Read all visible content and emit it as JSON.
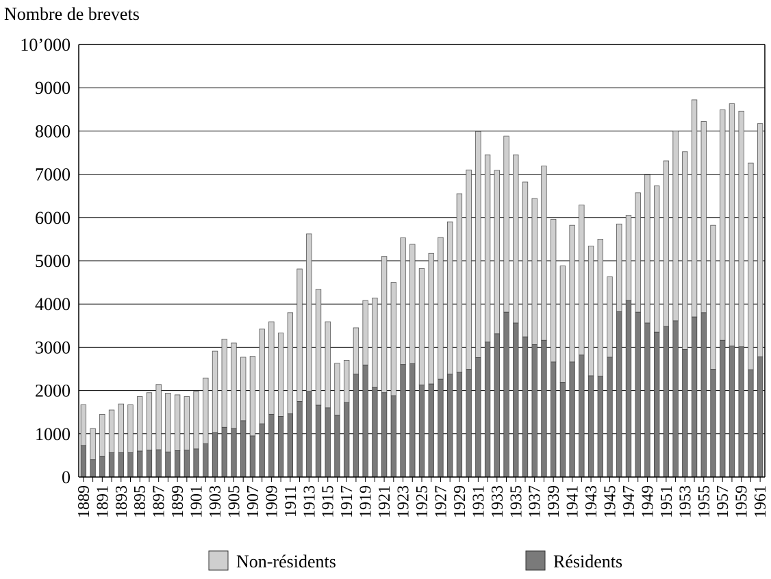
{
  "chart_data": {
    "type": "bar",
    "stacked": true,
    "title": "",
    "xlabel": "",
    "ylabel": "Nombre de brevets",
    "ylim": [
      0,
      10000
    ],
    "y_ticks": [
      "0",
      "1000",
      "2000",
      "3000",
      "4000",
      "5000",
      "6000",
      "7000",
      "8000",
      "9000",
      "10’000"
    ],
    "y_tick_values": [
      0,
      1000,
      2000,
      3000,
      4000,
      5000,
      6000,
      7000,
      8000,
      9000,
      10000
    ],
    "grid": "horizontal",
    "legend_position": "bottom",
    "categories": [
      1889,
      1890,
      1891,
      1892,
      1893,
      1894,
      1895,
      1896,
      1897,
      1898,
      1899,
      1900,
      1901,
      1902,
      1903,
      1904,
      1905,
      1906,
      1907,
      1908,
      1909,
      1910,
      1911,
      1912,
      1913,
      1914,
      1915,
      1916,
      1917,
      1918,
      1919,
      1920,
      1921,
      1922,
      1923,
      1924,
      1925,
      1926,
      1927,
      1928,
      1929,
      1930,
      1931,
      1932,
      1933,
      1934,
      1935,
      1936,
      1937,
      1938,
      1939,
      1940,
      1941,
      1942,
      1943,
      1944,
      1945,
      1946,
      1947,
      1948,
      1949,
      1950,
      1951,
      1952,
      1953,
      1954,
      1955,
      1956,
      1957,
      1958,
      1959,
      1960,
      1961
    ],
    "x_tick_labels": [
      "1889",
      "1891",
      "1893",
      "1895",
      "1897",
      "1899",
      "1901",
      "1903",
      "1905",
      "1907",
      "1909",
      "1911",
      "1913",
      "1915",
      "1917",
      "1919",
      "1921",
      "1923",
      "1925",
      "1927",
      "1929",
      "1931",
      "1933",
      "1935",
      "1937",
      "1939",
      "1941",
      "1943",
      "1945",
      "1947",
      "1949",
      "1951",
      "1953",
      "1955",
      "1957",
      "1959",
      "1961"
    ],
    "series": [
      {
        "name": "Résidents",
        "color": "#7a7a7a",
        "values": [
          730,
          400,
          480,
          560,
          560,
          560,
          600,
          620,
          630,
          580,
          610,
          620,
          650,
          770,
          1030,
          1150,
          1120,
          1300,
          950,
          1230,
          1450,
          1400,
          1460,
          1750,
          1980,
          1660,
          1600,
          1430,
          1720,
          2380,
          2590,
          2070,
          1950,
          1880,
          2600,
          2620,
          2130,
          2150,
          2260,
          2380,
          2420,
          2490,
          2760,
          3120,
          3310,
          3810,
          3560,
          3240,
          3060,
          3160,
          2660,
          2190,
          2660,
          2820,
          2340,
          2330,
          2770,
          3820,
          4080,
          3810,
          3560,
          3350,
          3480,
          3610,
          2950,
          3700,
          3800,
          2490,
          3160,
          3030,
          3010,
          2480,
          2780
        ]
      },
      {
        "name": "Non-résidents",
        "color": "#cfcfcf",
        "values": [
          940,
          720,
          970,
          990,
          1130,
          1110,
          1260,
          1330,
          1510,
          1360,
          1290,
          1240,
          1330,
          1520,
          1880,
          2040,
          1980,
          1470,
          1840,
          2190,
          2140,
          1930,
          2340,
          3060,
          3640,
          2680,
          1990,
          1200,
          980,
          1070,
          1490,
          2070,
          3150,
          2620,
          2930,
          2760,
          2690,
          3020,
          3280,
          3520,
          4130,
          4610,
          5230,
          4330,
          3780,
          4070,
          3890,
          3580,
          3380,
          4030,
          3300,
          2690,
          3160,
          3470,
          3000,
          3170,
          1860,
          2030,
          1970,
          2760,
          3430,
          3380,
          3830,
          4390,
          4570,
          5020,
          4420,
          3330,
          5330,
          5600,
          5450,
          4780,
          5390
        ]
      }
    ]
  }
}
